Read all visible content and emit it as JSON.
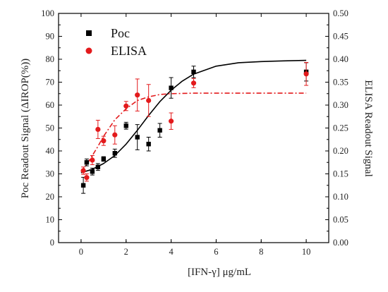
{
  "chart_data": {
    "type": "scatter",
    "xlabel": "[IFN-γ] μg/mL",
    "ylabel_left": "Poc Readout Signal (ΔIROP(%))",
    "ylabel_right": "ELISA Readout Signal",
    "xlim": [
      -1,
      11
    ],
    "ylim_left": [
      0,
      100
    ],
    "ylim_right": [
      0,
      0.5
    ],
    "x_ticks": [
      0,
      2,
      4,
      6,
      8,
      10
    ],
    "y_ticks_left": [
      0,
      10,
      20,
      30,
      40,
      50,
      60,
      70,
      80,
      90,
      100
    ],
    "y_ticks_right": [
      "0.00",
      "0.05",
      "0.10",
      "0.15",
      "0.20",
      "0.25",
      "0.30",
      "0.35",
      "0.40",
      "0.45",
      "0.50"
    ],
    "legend": {
      "position": "top-left"
    },
    "series": [
      {
        "name": "Poc",
        "axis": "left",
        "color": "#000000",
        "marker": "square",
        "x": [
          0.1,
          0.25,
          0.5,
          0.75,
          1.0,
          1.5,
          2.0,
          2.5,
          3.0,
          3.5,
          4.0,
          5.0,
          10.0
        ],
        "y": [
          25,
          35,
          31,
          33,
          36.5,
          39,
          51,
          46,
          43,
          49,
          67.5,
          74.5,
          74.5
        ],
        "err": [
          3.5,
          1.5,
          1.5,
          1.5,
          1.0,
          1.8,
          1.5,
          5.5,
          3.0,
          3.0,
          4.5,
          2.5,
          4.0
        ],
        "fit": {
          "style": "solid",
          "x": [
            0,
            0.5,
            1,
            1.5,
            2,
            2.5,
            3,
            3.5,
            4,
            4.5,
            5,
            6,
            7,
            8,
            9,
            10
          ],
          "y": [
            30.5,
            32,
            34.5,
            38,
            43,
            49,
            55.5,
            61.5,
            66.5,
            70.5,
            73.5,
            77,
            78.5,
            79,
            79.3,
            79.5
          ]
        }
      },
      {
        "name": "ELISA",
        "axis": "right",
        "color": "#e31a1c",
        "marker": "circle",
        "x": [
          0.1,
          0.25,
          0.5,
          0.75,
          1.0,
          1.5,
          2.0,
          2.5,
          3.0,
          4.0,
          5.0,
          10.0
        ],
        "y": [
          0.157,
          0.142,
          0.18,
          0.247,
          0.222,
          0.235,
          0.298,
          0.322,
          0.31,
          0.265,
          0.348,
          0.368
        ],
        "err": [
          0.008,
          0.008,
          0.01,
          0.02,
          0.01,
          0.02,
          0.01,
          0.035,
          0.035,
          0.018,
          0.01,
          0.025
        ],
        "fit": {
          "style": "dash-dot",
          "x": [
            0,
            0.25,
            0.5,
            0.75,
            1,
            1.25,
            1.5,
            2,
            2.5,
            3,
            3.5,
            4,
            5,
            6,
            10
          ],
          "y": [
            0.155,
            0.17,
            0.19,
            0.21,
            0.232,
            0.25,
            0.268,
            0.292,
            0.31,
            0.318,
            0.323,
            0.325,
            0.326,
            0.326,
            0.326
          ]
        }
      }
    ]
  }
}
